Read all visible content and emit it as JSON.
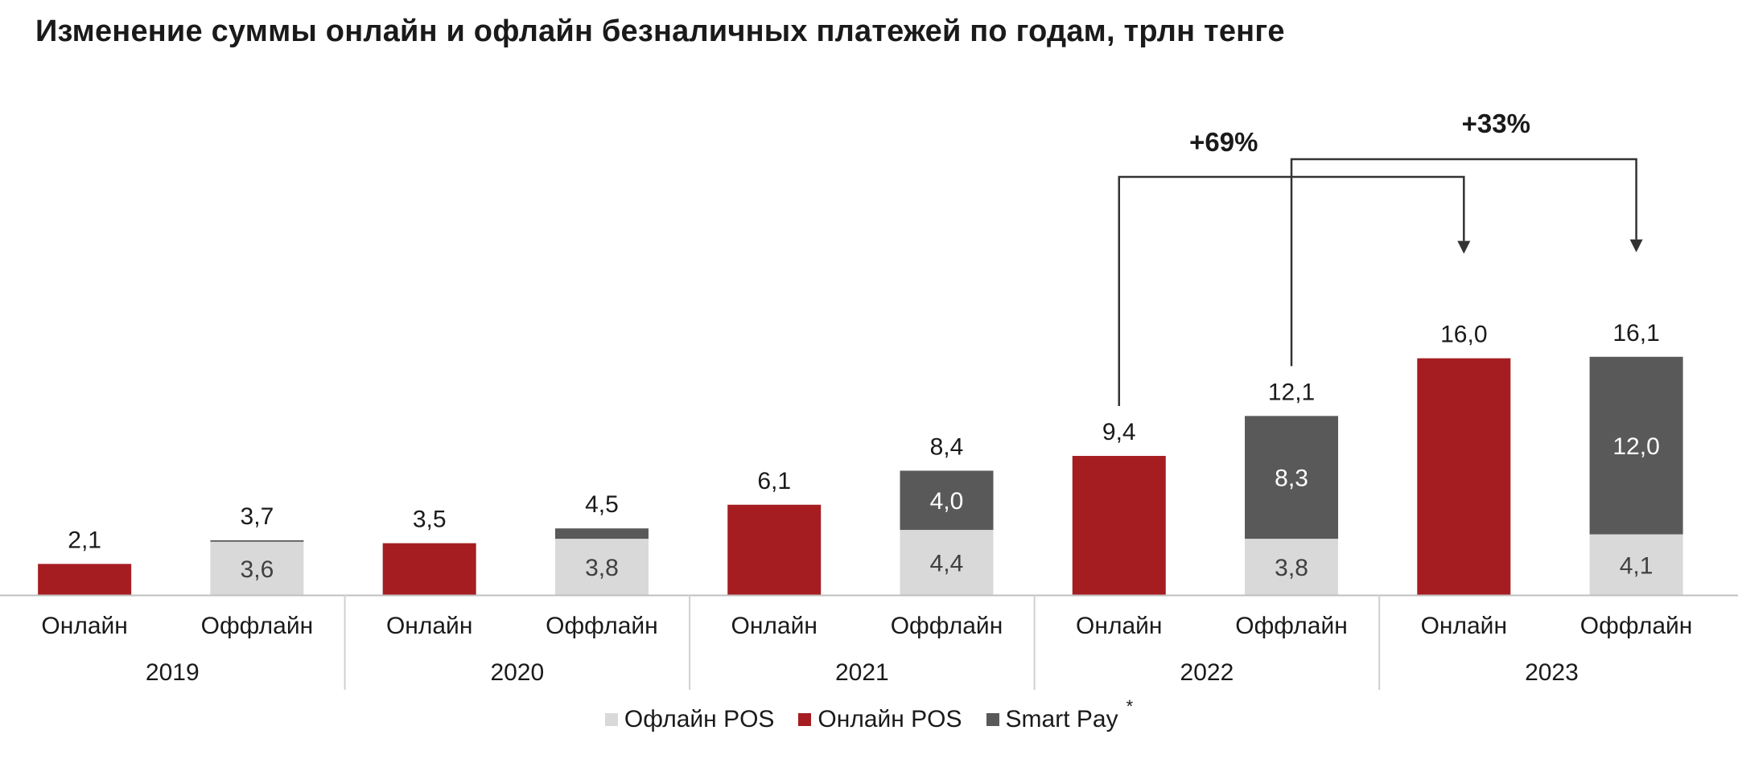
{
  "chart_data": {
    "type": "bar",
    "stacked": true,
    "title": "Изменение суммы онлайн и офлайн безналичных платежей по годам, трлн тенге",
    "groups": [
      "2019",
      "2020",
      "2021",
      "2022",
      "2023"
    ],
    "bars": [
      {
        "group": "2019",
        "category": "Онлайн",
        "total_label": "2,1",
        "segments": [
          {
            "series": "Онлайн POS",
            "value": 2.1,
            "label": ""
          }
        ]
      },
      {
        "group": "2019",
        "category": "Оффлайн",
        "total_label": "3,7",
        "segments": [
          {
            "series": "Офлайн POS",
            "value": 3.6,
            "label": "3,6"
          },
          {
            "series": "Smart Pay",
            "value": 0.1,
            "label": ""
          }
        ]
      },
      {
        "group": "2020",
        "category": "Онлайн",
        "total_label": "3,5",
        "segments": [
          {
            "series": "Онлайн POS",
            "value": 3.5,
            "label": ""
          }
        ]
      },
      {
        "group": "2020",
        "category": "Оффлайн",
        "total_label": "4,5",
        "segments": [
          {
            "series": "Офлайн POS",
            "value": 3.8,
            "label": "3,8"
          },
          {
            "series": "Smart Pay",
            "value": 0.7,
            "label": ""
          }
        ]
      },
      {
        "group": "2021",
        "category": "Онлайн",
        "total_label": "6,1",
        "segments": [
          {
            "series": "Онлайн POS",
            "value": 6.1,
            "label": ""
          }
        ]
      },
      {
        "group": "2021",
        "category": "Оффлайн",
        "total_label": "8,4",
        "segments": [
          {
            "series": "Офлайн POS",
            "value": 4.4,
            "label": "4,4"
          },
          {
            "series": "Smart Pay",
            "value": 4.0,
            "label": "4,0"
          }
        ]
      },
      {
        "group": "2022",
        "category": "Онлайн",
        "total_label": "9,4",
        "segments": [
          {
            "series": "Онлайн POS",
            "value": 9.4,
            "label": ""
          }
        ]
      },
      {
        "group": "2022",
        "category": "Оффлайн",
        "total_label": "12,1",
        "segments": [
          {
            "series": "Офлайн POS",
            "value": 3.8,
            "label": "3,8"
          },
          {
            "series": "Smart Pay",
            "value": 8.3,
            "label": "8,3"
          }
        ]
      },
      {
        "group": "2023",
        "category": "Онлайн",
        "total_label": "16,0",
        "segments": [
          {
            "series": "Онлайн POS",
            "value": 16.0,
            "label": ""
          }
        ]
      },
      {
        "group": "2023",
        "category": "Оффлайн",
        "total_label": "16,1",
        "segments": [
          {
            "series": "Офлайн POS",
            "value": 4.1,
            "label": "4,1"
          },
          {
            "series": "Smart Pay",
            "value": 12.0,
            "label": "12,0"
          }
        ]
      }
    ],
    "series": [
      {
        "name": "Офлайн POS",
        "color": "#d9d9d9"
      },
      {
        "name": "Онлайн POS",
        "color": "#a51d21"
      },
      {
        "name": "Smart Pay",
        "color": "#595959"
      }
    ],
    "ylim": [
      0,
      30
    ],
    "annotations": [
      {
        "label": "+69%",
        "from_bar": 6,
        "to_bar": 8
      },
      {
        "label": "+33%",
        "from_bar": 7,
        "to_bar": 9
      }
    ],
    "legend": {
      "position": "bottom",
      "footnote_mark": "*"
    }
  }
}
